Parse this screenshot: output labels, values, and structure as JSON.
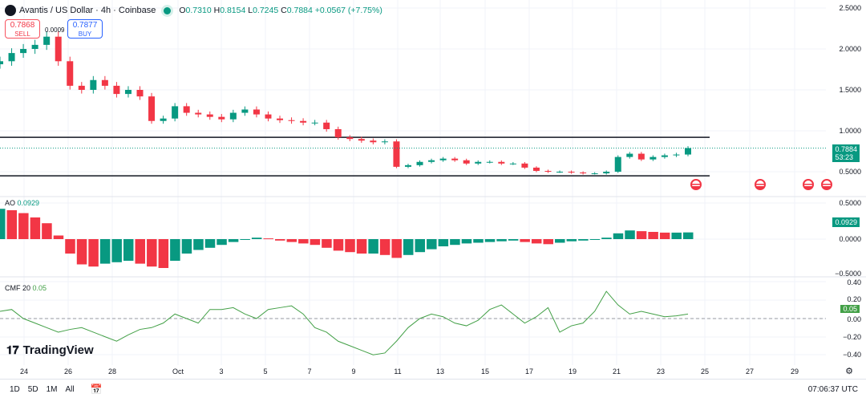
{
  "header": {
    "symbol": "Avantis / US Dollar · 4h · Coinbase",
    "open_label": "O",
    "open": "0.7310",
    "high_label": "H",
    "high": "0.8154",
    "low_label": "L",
    "low": "0.7245",
    "close_label": "C",
    "close": "0.7884",
    "change": "+0.0567 (+7.75%)"
  },
  "trade": {
    "sell_price": "0.7868",
    "sell_label": "SELL",
    "buy_price": "0.7877",
    "buy_label": "BUY",
    "spread": "0.0009"
  },
  "price_axis": {
    "ticks": [
      "2.5000",
      "2.0000",
      "1.5000",
      "1.0000",
      "0.5000"
    ],
    "current": "0.7884",
    "countdown": "53:23"
  },
  "ao": {
    "label": "AO",
    "value": "0.0929",
    "ticks": [
      "0.5000",
      "0.0000",
      "−0.5000"
    ]
  },
  "cmf": {
    "label": "CMF 20",
    "value": "0.05",
    "ticks": [
      "0.40",
      "0.20",
      "0.00",
      "−0.20",
      "−0.40"
    ]
  },
  "dates": [
    "24",
    "26",
    "28",
    "Oct",
    "3",
    "5",
    "7",
    "9",
    "11",
    "13",
    "15",
    "17",
    "19",
    "21",
    "23",
    "25",
    "27",
    "29"
  ],
  "toolbar": {
    "ranges": [
      "1D",
      "5D",
      "1M",
      "All"
    ],
    "clock": "07:06:37 UTC"
  },
  "brand": "TradingView",
  "colors": {
    "up": "#089981",
    "down": "#f23645",
    "cmf": "#43a047"
  },
  "chart_data": [
    {
      "type": "candlestick",
      "title": "Avantis / US Dollar · 4h · Coinbase",
      "ylim": [
        0.4,
        2.5
      ],
      "closes": [
        1.85,
        1.95,
        2.0,
        2.05,
        2.15,
        1.85,
        1.55,
        1.5,
        1.62,
        1.55,
        1.45,
        1.5,
        1.42,
        1.12,
        1.15,
        1.3,
        1.22,
        1.2,
        1.17,
        1.14,
        1.22,
        1.26,
        1.2,
        1.15,
        1.13,
        1.12,
        1.1,
        1.1,
        1.02,
        0.92,
        0.9,
        0.88,
        0.86,
        0.87,
        0.56,
        0.58,
        0.62,
        0.64,
        0.66,
        0.64,
        0.6,
        0.62,
        0.62,
        0.6,
        0.6,
        0.55,
        0.51,
        0.5,
        0.5,
        0.49,
        0.48,
        0.48,
        0.5,
        0.68,
        0.72,
        0.65,
        0.68,
        0.7,
        0.71,
        0.7884
      ],
      "horizontal_lines": [
        0.92,
        0.45
      ]
    },
    {
      "type": "bar",
      "title": "AO",
      "ylim": [
        -0.5,
        0.5
      ],
      "values": [
        0.42,
        0.4,
        0.36,
        0.3,
        0.22,
        0.05,
        -0.2,
        -0.35,
        -0.38,
        -0.34,
        -0.32,
        -0.3,
        -0.34,
        -0.38,
        -0.4,
        -0.3,
        -0.2,
        -0.15,
        -0.12,
        -0.08,
        -0.04,
        0,
        0.02,
        0.01,
        -0.02,
        -0.04,
        -0.06,
        -0.08,
        -0.12,
        -0.16,
        -0.18,
        -0.2,
        -0.2,
        -0.22,
        -0.26,
        -0.22,
        -0.18,
        -0.14,
        -0.1,
        -0.08,
        -0.06,
        -0.05,
        -0.04,
        -0.03,
        -0.02,
        -0.04,
        -0.06,
        -0.07,
        -0.05,
        -0.03,
        -0.02,
        0,
        0.02,
        0.08,
        0.12,
        0.11,
        0.1,
        0.09,
        0.09,
        0.0929
      ]
    },
    {
      "type": "line",
      "title": "CMF 20",
      "ylim": [
        -0.45,
        0.45
      ],
      "values": [
        0.08,
        0.1,
        0,
        -0.05,
        -0.1,
        -0.15,
        -0.12,
        -0.1,
        -0.15,
        -0.2,
        -0.25,
        -0.18,
        -0.12,
        -0.1,
        -0.05,
        0.05,
        0,
        -0.05,
        0.1,
        0.1,
        0.12,
        0.05,
        0,
        0.1,
        0.12,
        0.14,
        0.05,
        -0.1,
        -0.15,
        -0.25,
        -0.3,
        -0.35,
        -0.4,
        -0.38,
        -0.25,
        -0.1,
        0,
        0.05,
        0.02,
        -0.05,
        -0.08,
        -0.02,
        0.1,
        0.15,
        0.05,
        -0.05,
        0.02,
        0.12,
        -0.15,
        -0.08,
        -0.05,
        0.08,
        0.3,
        0.15,
        0.05,
        0.08,
        0.05,
        0.02,
        0.03,
        0.05
      ]
    }
  ]
}
